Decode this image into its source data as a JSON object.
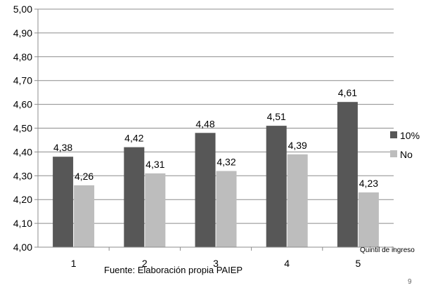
{
  "chart_data": {
    "type": "bar",
    "categories": [
      "1",
      "2",
      "3",
      "4",
      "5"
    ],
    "series": [
      {
        "name": "10%",
        "values": [
          4.38,
          4.42,
          4.48,
          4.51,
          4.61
        ],
        "color": "#575757"
      },
      {
        "name": "No",
        "values": [
          4.26,
          4.31,
          4.32,
          4.39,
          4.23
        ],
        "color": "#bdbdbd"
      }
    ],
    "value_labels": [
      [
        "4,38",
        "4,42",
        "4,48",
        "4,51",
        "4,61"
      ],
      [
        "4,26",
        "4,31",
        "4,32",
        "4,39",
        "4,23"
      ]
    ],
    "ylim": [
      4.0,
      5.0
    ],
    "yticks": [
      4.0,
      4.1,
      4.2,
      4.3,
      4.4,
      4.5,
      4.6,
      4.7,
      4.8,
      4.9,
      5.0
    ],
    "ytick_labels": [
      "4,00",
      "4,10",
      "4,20",
      "4,30",
      "4,40",
      "4,50",
      "4,60",
      "4,70",
      "4,80",
      "4,90",
      "5,00"
    ],
    "xlabel": "Quintil de ingreso",
    "grid": true,
    "legend_position": "right"
  },
  "footer": {
    "source": "Fuente: Elaboración propia PAIEP",
    "page_number": "9"
  }
}
